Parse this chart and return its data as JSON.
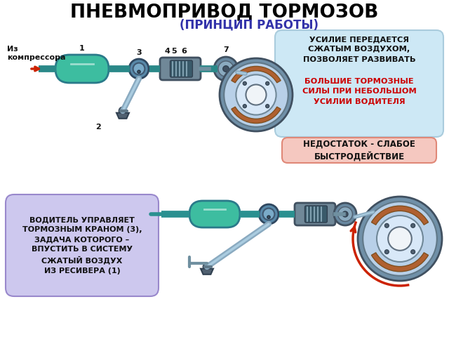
{
  "title": "ПНЕВМОПРИВОД ТОРМОЗОВ",
  "subtitle": "(ПРИНЦИП РАБОТЫ)",
  "title_color": "#000000",
  "subtitle_color": "#3333aa",
  "box1_text_black": "УСИЛИЕ ПЕРЕДАЕТСЯ\nСЖАТЫМ ВОЗДУХОМ,\nПОЗВОЛЯЕТ РАЗВИВАТЬ",
  "box1_text_red": "БОЛЬШИЕ ТОРМОЗНЫЕ\nСИЛЫ ПРИ НЕБОЛЬШОМ\nУСИЛИИ ВОДИТЕЛЯ",
  "box1_bg": "#cde8f5",
  "box1_border": "#aaccdd",
  "box2_text": "НЕДОСТАТОК - СЛАБОЕ\nБЫСТРОДЕЙСТВИЕ",
  "box2_bg": "#f5c8c0",
  "box2_border": "#e08878",
  "box3_text": "ВОДИТЕЛЬ УПРАВЛЯЕТ\nТОРМОЗНЫМ КРАНОМ (3),\nЗАДАЧА КОТОРОГО –\nВПУСТИТЬ В СИСТЕМУ\nСЖАТЫЙ ВОЗДУХ\nИЗ РЕСИВЕРА (1)",
  "box3_bg": "#cdc8ee",
  "box3_border": "#9988cc",
  "bg_color": "#ffffff",
  "pipe_color": "#7a9ab8",
  "tank_fill": "#3dbda0",
  "tank_border": "#2a7a8a",
  "grey_pipe": "#8aabb8",
  "dark_pipe": "#3a5a6a",
  "spring_color": "#444466",
  "drum_outer": "#a0c0d8",
  "drum_inner": "#d0e0f0",
  "drum_hub": "#e0e8f0",
  "brake_shoe": "#b06840",
  "red_arrow": "#cc2200"
}
